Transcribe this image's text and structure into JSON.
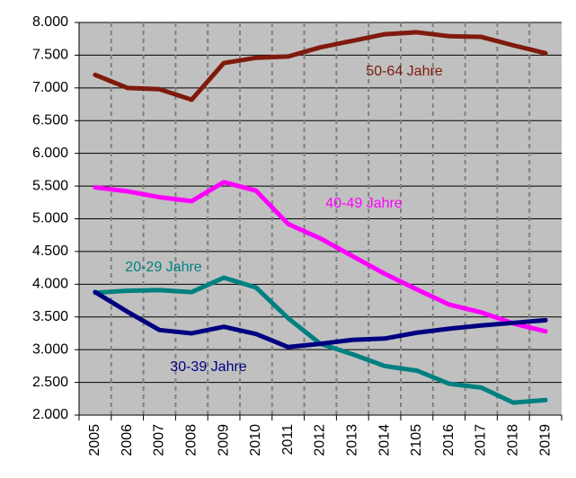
{
  "chart_data": {
    "type": "line",
    "categories": [
      "2005",
      "2006",
      "2007",
      "2008",
      "2009",
      "2010",
      "2011",
      "2012",
      "2013",
      "2014",
      "2105",
      "2016",
      "2017",
      "2018",
      "2019"
    ],
    "series": [
      {
        "name": "50-64 Jahre",
        "color": "#7f1a0c",
        "values": [
          7200,
          7000,
          6980,
          6820,
          7380,
          7460,
          7480,
          7620,
          7720,
          7820,
          7850,
          7790,
          7780,
          7650,
          7530
        ]
      },
      {
        "name": "40-49 Jahre",
        "color": "#ff00ff",
        "values": [
          5480,
          5420,
          5330,
          5270,
          5560,
          5430,
          4920,
          4700,
          4430,
          4160,
          3920,
          3690,
          3570,
          3400,
          3280
        ]
      },
      {
        "name": "20-29 Jahre",
        "color": "#008080",
        "values": [
          3870,
          3900,
          3910,
          3880,
          4100,
          3950,
          3480,
          3090,
          2930,
          2750,
          2680,
          2480,
          2420,
          2190,
          2230
        ]
      },
      {
        "name": "30-39 Jahre",
        "color": "#000080",
        "values": [
          3880,
          3580,
          3300,
          3250,
          3350,
          3240,
          3040,
          3090,
          3150,
          3170,
          3260,
          3320,
          3370,
          3410,
          3450
        ]
      }
    ],
    "ylim": [
      2000,
      8000
    ],
    "yticks": [
      {
        "value": 2000,
        "label": "2.000"
      },
      {
        "value": 2500,
        "label": "2.500"
      },
      {
        "value": 3000,
        "label": "3.000"
      },
      {
        "value": 3500,
        "label": "3.500"
      },
      {
        "value": 4000,
        "label": "4.000"
      },
      {
        "value": 4500,
        "label": "4.500"
      },
      {
        "value": 5000,
        "label": "5.000"
      },
      {
        "value": 5500,
        "label": "5.500"
      },
      {
        "value": 6000,
        "label": "6.000"
      },
      {
        "value": 6500,
        "label": "6.500"
      },
      {
        "value": 7000,
        "label": "7.000"
      },
      {
        "value": 7500,
        "label": "7.500"
      },
      {
        "value": 8000,
        "label": "8.000"
      }
    ],
    "background": "#c0c0c0",
    "grid": true
  }
}
